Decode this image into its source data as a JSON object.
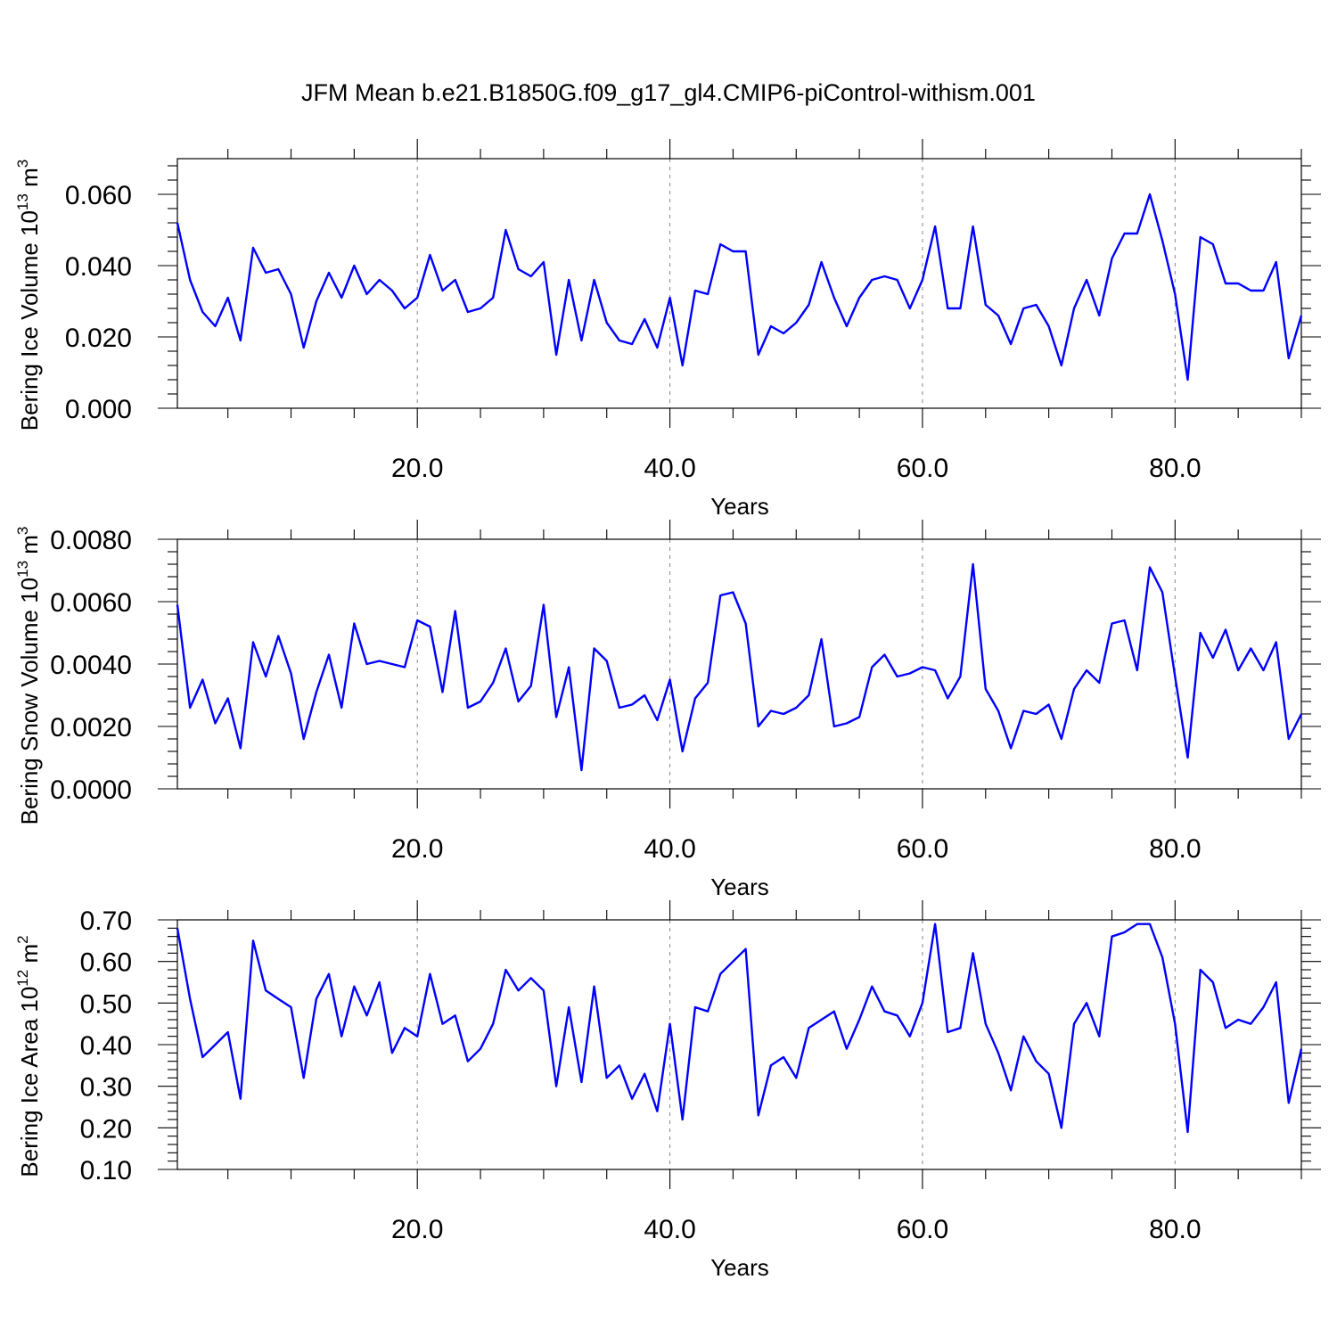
{
  "title": "JFM Mean b.e21.B1850G.f09_g17_gl4.CMIP6-piControl-withism.001",
  "colors": {
    "line": "#0000ff",
    "grid": "#888888"
  },
  "chart_data": [
    {
      "type": "line",
      "xlabel": "Years",
      "ylabel": "Bering Ice Volume 10",
      "ylabel_exp": "13",
      "ylabel_unit": " m",
      "ylabel_unit_exp": "3",
      "xlim": [
        1,
        90
      ],
      "ylim": [
        0.0,
        0.07
      ],
      "xticks": [
        20,
        40,
        60,
        80
      ],
      "xtick_labels": [
        "20.0",
        "40.0",
        "60.0",
        "80.0"
      ],
      "yticks": [
        0.0,
        0.02,
        0.04,
        0.06
      ],
      "ytick_labels": [
        "0.000",
        "0.020",
        "0.040",
        "0.060"
      ],
      "grid": "vertical dashed at major x ticks",
      "series": [
        {
          "x_start": 1,
          "values": [
            0.052,
            0.036,
            0.027,
            0.023,
            0.031,
            0.019,
            0.045,
            0.038,
            0.039,
            0.032,
            0.017,
            0.03,
            0.038,
            0.031,
            0.04,
            0.032,
            0.036,
            0.033,
            0.028,
            0.031,
            0.043,
            0.033,
            0.036,
            0.027,
            0.028,
            0.031,
            0.05,
            0.039,
            0.037,
            0.041,
            0.015,
            0.036,
            0.019,
            0.036,
            0.024,
            0.019,
            0.018,
            0.025,
            0.017,
            0.031,
            0.012,
            0.033,
            0.032,
            0.046,
            0.044,
            0.044,
            0.015,
            0.023,
            0.021,
            0.024,
            0.029,
            0.041,
            0.031,
            0.023,
            0.031,
            0.036,
            0.037,
            0.036,
            0.028,
            0.036,
            0.051,
            0.028,
            0.028,
            0.051,
            0.029,
            0.026,
            0.018,
            0.028,
            0.029,
            0.023,
            0.012,
            0.028,
            0.036,
            0.026,
            0.042,
            0.049,
            0.049,
            0.06,
            0.047,
            0.032,
            0.008,
            0.048,
            0.046,
            0.035,
            0.035,
            0.033,
            0.033,
            0.041,
            0.014,
            0.026
          ]
        }
      ]
    },
    {
      "type": "line",
      "xlabel": "Years",
      "ylabel": "Bering Snow Volume 10",
      "ylabel_exp": "13",
      "ylabel_unit": " m",
      "ylabel_unit_exp": "3",
      "xlim": [
        1,
        90
      ],
      "ylim": [
        0.0,
        0.008
      ],
      "xticks": [
        20,
        40,
        60,
        80
      ],
      "xtick_labels": [
        "20.0",
        "40.0",
        "60.0",
        "80.0"
      ],
      "yticks": [
        0.0,
        0.002,
        0.004,
        0.006,
        0.008
      ],
      "ytick_labels": [
        "0.0000",
        "0.0020",
        "0.0040",
        "0.0060",
        "0.0080"
      ],
      "grid": "vertical dashed at major x ticks",
      "series": [
        {
          "x_start": 1,
          "values": [
            0.0059,
            0.0026,
            0.0035,
            0.0021,
            0.0029,
            0.0013,
            0.0047,
            0.0036,
            0.0049,
            0.0037,
            0.0016,
            0.0031,
            0.0043,
            0.0026,
            0.0053,
            0.004,
            0.0041,
            0.004,
            0.0039,
            0.0054,
            0.0052,
            0.0031,
            0.0057,
            0.0026,
            0.0028,
            0.0034,
            0.0045,
            0.0028,
            0.0033,
            0.0059,
            0.0023,
            0.0039,
            0.0006,
            0.0045,
            0.0041,
            0.0026,
            0.0027,
            0.003,
            0.0022,
            0.0035,
            0.0012,
            0.0029,
            0.0034,
            0.0062,
            0.0063,
            0.0053,
            0.002,
            0.0025,
            0.0024,
            0.0026,
            0.003,
            0.0048,
            0.002,
            0.0021,
            0.0023,
            0.0039,
            0.0043,
            0.0036,
            0.0037,
            0.0039,
            0.0038,
            0.0029,
            0.0036,
            0.0072,
            0.0032,
            0.0025,
            0.0013,
            0.0025,
            0.0024,
            0.0027,
            0.0016,
            0.0032,
            0.0038,
            0.0034,
            0.0053,
            0.0054,
            0.0038,
            0.0071,
            0.0063,
            0.0036,
            0.001,
            0.005,
            0.0042,
            0.0051,
            0.0038,
            0.0045,
            0.0038,
            0.0047,
            0.0016,
            0.0024
          ]
        }
      ]
    },
    {
      "type": "line",
      "xlabel": "Years",
      "ylabel": "Bering Ice Area 10",
      "ylabel_exp": "12",
      "ylabel_unit": " m",
      "ylabel_unit_exp": "2",
      "xlim": [
        1,
        90
      ],
      "ylim": [
        0.1,
        0.7
      ],
      "xticks": [
        20,
        40,
        60,
        80
      ],
      "xtick_labels": [
        "20.0",
        "40.0",
        "60.0",
        "80.0"
      ],
      "yticks": [
        0.1,
        0.2,
        0.3,
        0.4,
        0.5,
        0.6,
        0.7
      ],
      "ytick_labels": [
        "0.10",
        "0.20",
        "0.30",
        "0.40",
        "0.50",
        "0.60",
        "0.70"
      ],
      "grid": "vertical dashed at major x ticks",
      "series": [
        {
          "x_start": 1,
          "values": [
            0.68,
            0.51,
            0.37,
            0.4,
            0.43,
            0.27,
            0.65,
            0.53,
            0.51,
            0.49,
            0.32,
            0.51,
            0.57,
            0.42,
            0.54,
            0.47,
            0.55,
            0.38,
            0.44,
            0.42,
            0.57,
            0.45,
            0.47,
            0.36,
            0.39,
            0.45,
            0.58,
            0.53,
            0.56,
            0.53,
            0.3,
            0.49,
            0.31,
            0.54,
            0.32,
            0.35,
            0.27,
            0.33,
            0.24,
            0.45,
            0.22,
            0.49,
            0.48,
            0.57,
            0.6,
            0.63,
            0.23,
            0.35,
            0.37,
            0.32,
            0.44,
            0.46,
            0.48,
            0.39,
            0.46,
            0.54,
            0.48,
            0.47,
            0.42,
            0.5,
            0.69,
            0.43,
            0.44,
            0.62,
            0.45,
            0.38,
            0.29,
            0.42,
            0.36,
            0.33,
            0.2,
            0.45,
            0.5,
            0.42,
            0.66,
            0.67,
            0.69,
            0.69,
            0.61,
            0.45,
            0.19,
            0.58,
            0.55,
            0.44,
            0.46,
            0.45,
            0.49,
            0.55,
            0.26,
            0.39
          ]
        }
      ]
    }
  ]
}
